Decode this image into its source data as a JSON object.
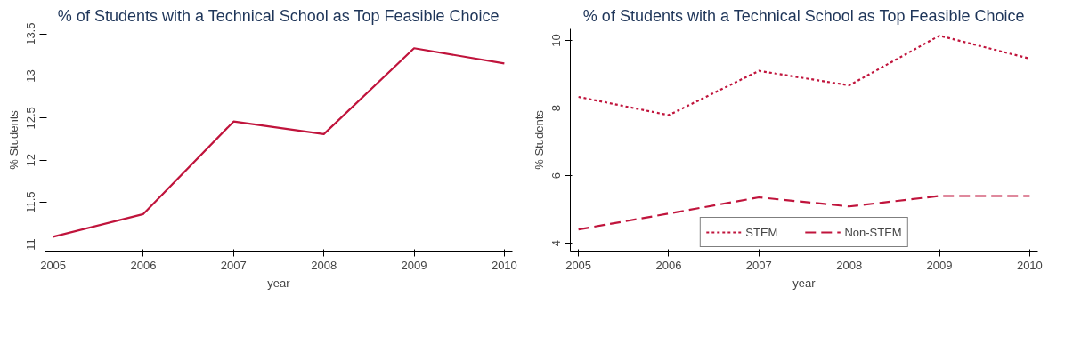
{
  "chart_data": [
    {
      "type": "line",
      "title": "% of Students with a Technical School as Top Feasible Choice",
      "xlabel": "year",
      "ylabel": "% Students",
      "x": [
        2005,
        2006,
        2007,
        2008,
        2009,
        2010
      ],
      "series": [
        {
          "color": "#c0143c",
          "values": [
            11.09,
            11.36,
            12.46,
            12.31,
            13.33,
            13.15
          ],
          "line_style": "solid"
        }
      ],
      "xlim": [
        2004.91,
        2010.09
      ],
      "xticks": [
        2005,
        2006,
        2007,
        2008,
        2009,
        2010
      ],
      "ylim": [
        10.92,
        13.56
      ],
      "yticks": [
        11,
        11.5,
        12,
        12.5,
        13,
        13.5
      ],
      "grid": false
    },
    {
      "type": "line",
      "title": "% of Students with a Technical School as Top Feasible Choice",
      "xlabel": "year",
      "ylabel": "% Students",
      "x": [
        2005,
        2006,
        2007,
        2008,
        2009,
        2010
      ],
      "series": [
        {
          "name": "STEM",
          "color": "#c0143c",
          "values": [
            8.33,
            7.79,
            9.1,
            8.67,
            10.14,
            9.46
          ],
          "line_style": "dotted"
        },
        {
          "name": "Non-STEM",
          "color": "#c0143c",
          "values": [
            4.41,
            4.88,
            5.36,
            5.09,
            5.4,
            5.4
          ],
          "line_style": "dashed"
        }
      ],
      "xlim": [
        2004.91,
        2010.09
      ],
      "xticks": [
        2005,
        2006,
        2007,
        2008,
        2009,
        2010
      ],
      "ylim": [
        3.77,
        10.34
      ],
      "yticks": [
        4,
        6,
        8,
        10
      ],
      "grid": false,
      "legend": "bottom"
    }
  ]
}
